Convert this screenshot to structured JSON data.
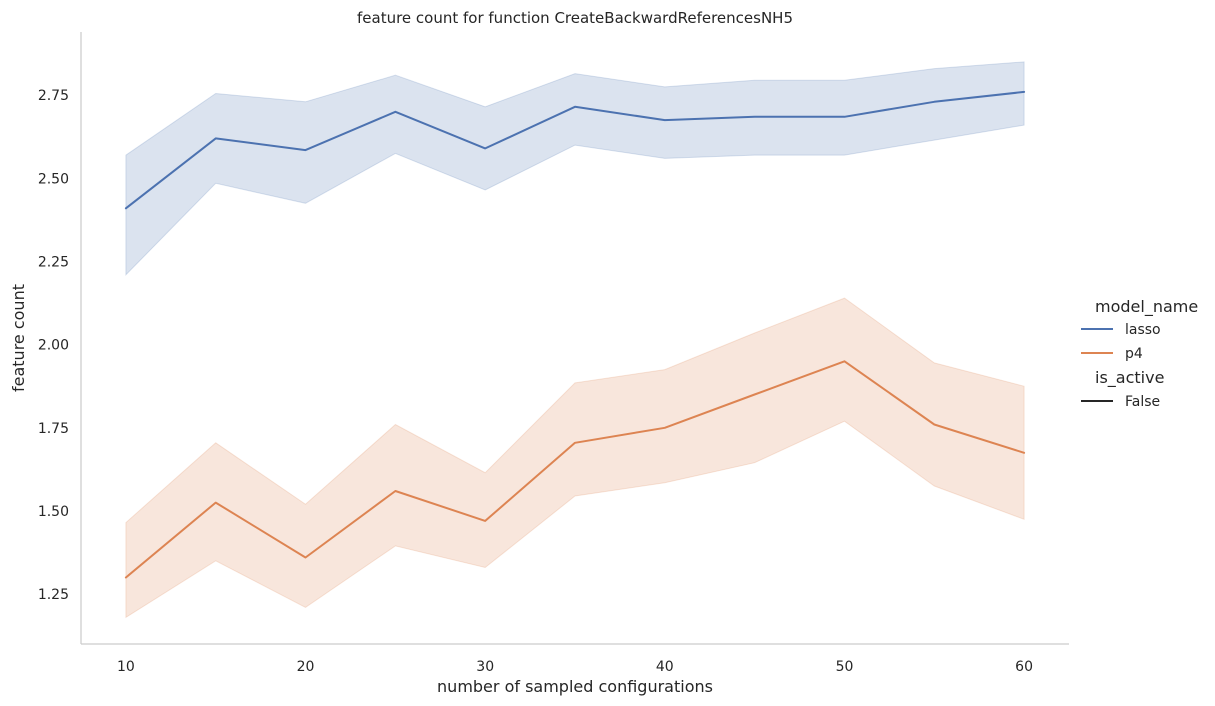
{
  "chart_data": {
    "type": "line",
    "title": "feature count for function CreateBackwardReferencesNH5",
    "xlabel": "number of sampled configurations",
    "ylabel": "feature count",
    "xlim": [
      7.5,
      62.5
    ],
    "ylim": [
      1.1,
      2.94
    ],
    "x_ticks": [
      10,
      20,
      30,
      40,
      50,
      60
    ],
    "y_ticks": [
      1.25,
      1.5,
      1.75,
      2.0,
      2.25,
      2.5,
      2.75
    ],
    "x_tick_labels": [
      "10",
      "20",
      "30",
      "40",
      "50",
      "60"
    ],
    "y_tick_labels": [
      "1.25",
      "1.50",
      "1.75",
      "2.00",
      "2.25",
      "2.50",
      "2.75"
    ],
    "grid": false,
    "x": [
      10,
      15,
      20,
      25,
      30,
      35,
      40,
      45,
      50,
      55,
      60
    ],
    "series": [
      {
        "name": "lasso",
        "color": "#4c72b0",
        "values": [
          2.41,
          2.62,
          2.585,
          2.7,
          2.59,
          2.715,
          2.675,
          2.685,
          2.685,
          2.73,
          2.76
        ],
        "lower": [
          2.21,
          2.485,
          2.425,
          2.575,
          2.465,
          2.6,
          2.56,
          2.57,
          2.57,
          2.615,
          2.66
        ],
        "upper": [
          2.57,
          2.755,
          2.73,
          2.81,
          2.715,
          2.815,
          2.775,
          2.795,
          2.795,
          2.83,
          2.85
        ]
      },
      {
        "name": "p4",
        "color": "#dd8452",
        "values": [
          1.3,
          1.525,
          1.36,
          1.56,
          1.47,
          1.705,
          1.75,
          1.85,
          1.95,
          1.76,
          1.675
        ],
        "lower": [
          1.18,
          1.35,
          1.21,
          1.395,
          1.33,
          1.545,
          1.585,
          1.645,
          1.77,
          1.575,
          1.475
        ],
        "upper": [
          1.465,
          1.705,
          1.52,
          1.76,
          1.615,
          1.885,
          1.925,
          2.035,
          2.14,
          1.945,
          1.875
        ]
      }
    ],
    "legend": {
      "placement": "right",
      "hue_title": "model_name",
      "hue_entries": [
        "lasso",
        "p4"
      ],
      "style_title": "is_active",
      "style_entries": [
        "False"
      ],
      "style_color": "#262626"
    }
  }
}
